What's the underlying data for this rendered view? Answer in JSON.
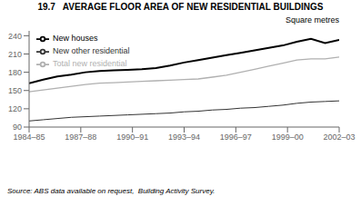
{
  "chart_data": {
    "type": "line",
    "title": "19.7   AVERAGE FLOOR AREA OF NEW RESIDENTIAL BUILDINGS",
    "ylabel": "Square metres",
    "source": "Source: ABS data available on request,  Building Activity Survey.",
    "x": [
      0,
      0.818182,
      1.636364,
      2.454545,
      3.272727,
      4.090909,
      4.909091,
      5.727273,
      6.545455,
      7.363636,
      8.181818,
      9,
      9.818182,
      10.636364,
      11.454545,
      12.272727,
      13.090909,
      13.909091,
      14.727273,
      15.545455,
      16.363636,
      17.181818,
      18
    ],
    "xlim": [
      0,
      18
    ],
    "xticks": [
      {
        "value": 0,
        "label": "1984–85"
      },
      {
        "value": 3,
        "label": "1987–88"
      },
      {
        "value": 6,
        "label": "1990–91"
      },
      {
        "value": 9,
        "label": "1993–94"
      },
      {
        "value": 12,
        "label": "1996–97"
      },
      {
        "value": 15,
        "label": "1999–00"
      },
      {
        "value": 18,
        "label": "2002–03"
      }
    ],
    "ylim": [
      90,
      248
    ],
    "yticks": [
      90,
      120,
      150,
      180,
      210,
      240
    ],
    "series": [
      {
        "name": "New houses",
        "color": "#000000",
        "values": [
          162,
          168,
          173,
          176,
          180,
          182,
          183,
          184,
          185,
          187,
          191,
          196,
          200,
          204,
          208,
          212,
          216,
          220,
          224,
          230,
          235,
          228,
          233
        ]
      },
      {
        "name": "New other residential",
        "color": "#333333",
        "values": [
          100,
          102,
          104,
          106,
          107,
          108,
          109,
          110,
          111,
          112,
          113,
          115,
          116,
          118,
          119,
          121,
          122,
          124,
          126,
          129,
          131,
          132,
          133
        ]
      },
      {
        "name": "Total new residential",
        "color": "#b0b0b0",
        "values": [
          148,
          151,
          154,
          157,
          160,
          162,
          163,
          164,
          165,
          166,
          167,
          168,
          169,
          172,
          175,
          180,
          185,
          190,
          195,
          200,
          202,
          202,
          205
        ]
      }
    ],
    "grid": false,
    "legend": "upper left"
  }
}
